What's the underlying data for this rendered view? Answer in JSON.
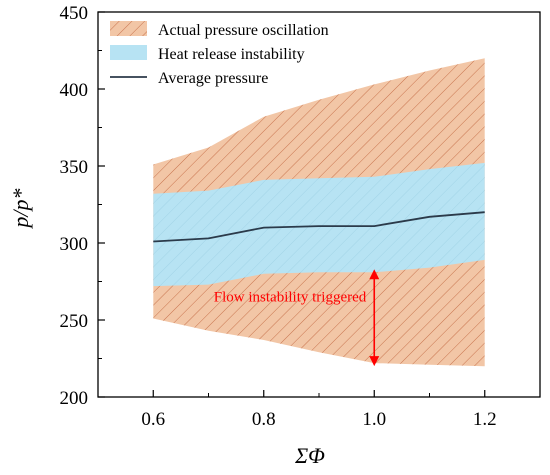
{
  "chart_data": {
    "type": "area",
    "xlabel": "ΣΦ",
    "ylabel": "p/p*",
    "xlim": [
      0.5,
      1.3
    ],
    "ylim": [
      200,
      450
    ],
    "xticks": [
      "0.6",
      "0.8",
      "1.0",
      "1.2"
    ],
    "yticks": [
      "200",
      "250",
      "300",
      "350",
      "400",
      "450"
    ],
    "x": [
      0.6,
      0.7,
      0.8,
      0.9,
      1.0,
      1.1,
      1.2
    ],
    "series": [
      {
        "name": "Actual pressure oscillation",
        "upper": [
          351,
          362,
          382,
          393,
          403,
          412,
          420
        ],
        "lower": [
          251,
          243,
          237,
          229,
          222,
          221,
          220
        ],
        "color": "#f2c6a6",
        "hatch": "#c8734d"
      },
      {
        "name": "Heat release instability",
        "upper": [
          332,
          334,
          341,
          342,
          343,
          348,
          352
        ],
        "lower": [
          272,
          273,
          280,
          281,
          281,
          284,
          289
        ],
        "color": "#b7e3f3"
      },
      {
        "name": "Average pressure",
        "values": [
          301,
          303,
          310,
          311,
          311,
          317,
          320
        ],
        "color": "#2b3a4a"
      }
    ],
    "legend_position": "top-left",
    "grid": false,
    "annotation": {
      "text": "Flow instability triggered",
      "x": 1.0,
      "y_from": 281,
      "y_to": 222,
      "color": "#ff0000"
    }
  }
}
